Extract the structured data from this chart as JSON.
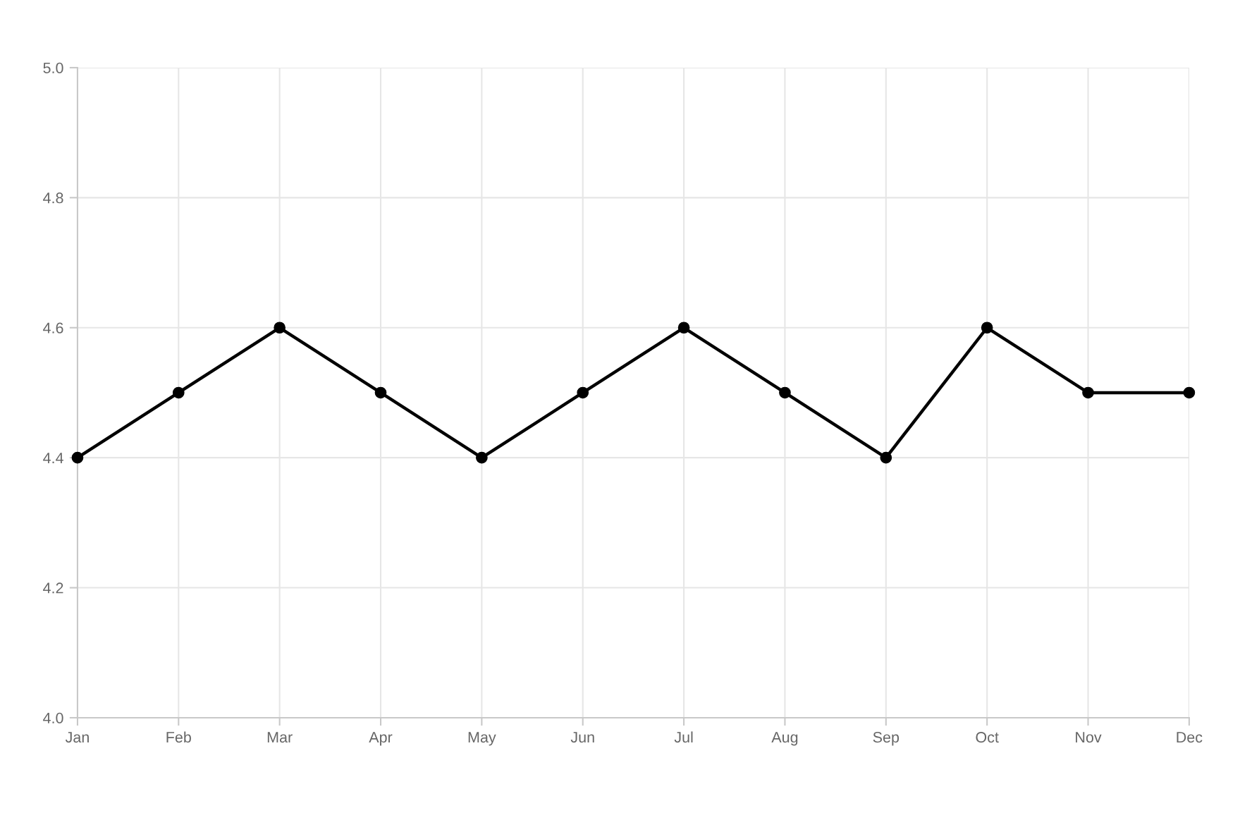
{
  "chart_data": {
    "type": "line",
    "categories": [
      "Jan",
      "Feb",
      "Mar",
      "Apr",
      "May",
      "Jun",
      "Jul",
      "Aug",
      "Sep",
      "Oct",
      "Nov",
      "Dec"
    ],
    "series": [
      {
        "color": "#000000",
        "values": [
          4.4,
          4.5,
          4.6,
          4.5,
          4.4,
          4.5,
          4.6,
          4.5,
          4.4,
          4.6,
          4.5,
          4.5
        ]
      }
    ],
    "ylim": [
      4.0,
      5.0
    ],
    "yticks": [
      {
        "value": 4.0,
        "label": "4.0"
      },
      {
        "value": 4.2,
        "label": "4.2"
      },
      {
        "value": 4.4,
        "label": "4.4"
      },
      {
        "value": 4.6,
        "label": "4.6"
      },
      {
        "value": 4.8,
        "label": "4.8"
      },
      {
        "value": 5.0,
        "label": "5.0"
      }
    ],
    "grid": true,
    "marker": "circle",
    "line_style": "solid"
  }
}
